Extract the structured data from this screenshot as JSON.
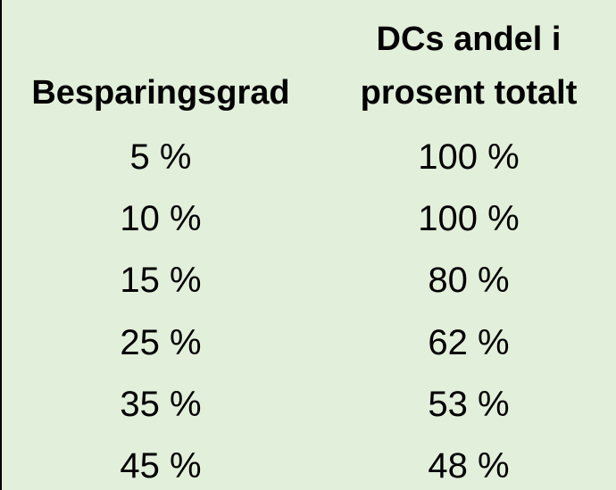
{
  "table": {
    "header": [
      "Besparingsgrad",
      [
        "DCs andel i",
        "prosent totalt"
      ]
    ],
    "rows": [
      [
        "5 %",
        "100 %"
      ],
      [
        "10 %",
        "100 %"
      ],
      [
        "15 %",
        "80 %"
      ],
      [
        "25 %",
        "62 %"
      ],
      [
        "35 %",
        "53 %"
      ],
      [
        "45 %",
        "48 %"
      ]
    ]
  }
}
